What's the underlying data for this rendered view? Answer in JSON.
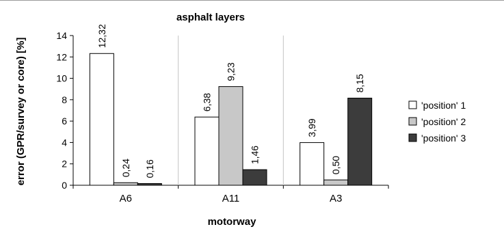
{
  "chart_data": {
    "type": "bar",
    "title": "asphalt layers",
    "xlabel": "motorway",
    "ylabel": "error (GPR/survey or core) [%]",
    "ylim": [
      0,
      14
    ],
    "yticks": [
      0,
      2,
      4,
      6,
      8,
      10,
      12,
      14
    ],
    "ytick_labels": [
      "0",
      "2",
      "4",
      "6",
      "8",
      "10",
      "12",
      "14"
    ],
    "categories": [
      "A6",
      "A11",
      "A3"
    ],
    "series": [
      {
        "name": "'position' 1",
        "values": [
          12.32,
          6.38,
          3.99
        ],
        "labels": [
          "12,32",
          "6,38",
          "3,99"
        ],
        "color": "#ffffff"
      },
      {
        "name": "'position' 2",
        "values": [
          0.24,
          9.23,
          0.5
        ],
        "labels": [
          "0,24",
          "9,23",
          "0,50"
        ],
        "color": "#c8c8c8"
      },
      {
        "name": "'position' 3",
        "values": [
          0.16,
          1.46,
          8.15
        ],
        "labels": [
          "0,16",
          "1,46",
          "8,15"
        ],
        "color": "#3c3c3c"
      }
    ],
    "grid": false,
    "category_separators": true,
    "legend": "right"
  }
}
